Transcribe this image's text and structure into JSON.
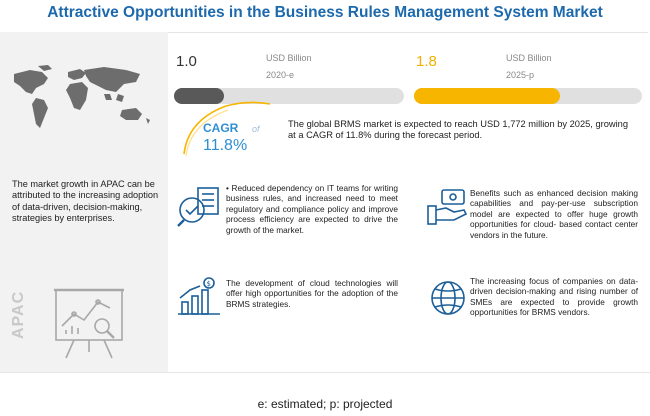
{
  "title": "Attractive Opportunities in the Business Rules Management System Market",
  "market": {
    "start": {
      "value": "1.0",
      "unit": "USD Billion",
      "year": "2020-e"
    },
    "end": {
      "value": "1.8",
      "unit": "USD Billion",
      "year": "2025-p"
    }
  },
  "cagr": {
    "label": "CAGR",
    "of": "of",
    "value": "11.8%",
    "description": "The global BRMS market is expected to reach USD 1,772 million by 2025, growing at a CAGR of 11.8% during the forecast period."
  },
  "left_panel": {
    "region": "APAC",
    "text": "The market growth in APAC can be attributed to the increasing adoption of data-driven, decision-making, strategies by enterprises."
  },
  "insights": [
    {
      "text": "• Reduced dependency on IT teams for writing business rules, and increased need to meet regulatory and compliance policy and improve process efficiency are expected to drive the growth of the market."
    },
    {
      "text": "Benefits such as enhanced decision making capabilities and pay-per-use subscription model are expected to offer huge growth opportunities for cloud- based contact center vendors in the future."
    },
    {
      "text": "The development of cloud technologies will offer high opportunities for the adoption of the BRMS strategies."
    },
    {
      "text": "The increasing focus of companies on data-driven decision-making and rising number of SMEs are expected to provide growth opportunities for BRMS vendors."
    }
  ],
  "footnote": "e: estimated; p: projected",
  "colors": {
    "title": "#1c69ad",
    "bar_start": "#595959",
    "bar_end": "#f7b500",
    "cagr": "#2e8fd4",
    "icon": "#1c5f99"
  }
}
